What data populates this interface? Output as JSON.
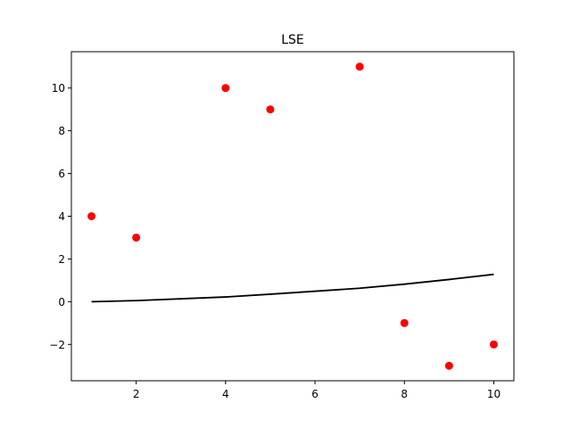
{
  "chart_data": {
    "type": "scatter",
    "title": "LSE",
    "xlabel": "",
    "ylabel": "",
    "xlim": [
      0.55,
      10.45
    ],
    "ylim": [
      -3.7,
      11.7
    ],
    "xticks": [
      2,
      4,
      6,
      8,
      10
    ],
    "yticks": [
      -2,
      0,
      2,
      4,
      6,
      8,
      10
    ],
    "xtick_labels": [
      "2",
      "4",
      "6",
      "8",
      "10"
    ],
    "ytick_labels": [
      "−2",
      "0",
      "2",
      "4",
      "6",
      "8",
      "10"
    ],
    "grid": false,
    "series": [
      {
        "kind": "scatter",
        "color": "#ff0000",
        "x": [
          1,
          2,
          4,
          5,
          7,
          8,
          9,
          10
        ],
        "y": [
          4,
          3,
          10,
          9,
          11,
          -1,
          -3,
          -2
        ]
      },
      {
        "kind": "line",
        "color": "#000000",
        "x": [
          1,
          2,
          4,
          5,
          7,
          8,
          9,
          10
        ],
        "y": [
          0.0,
          0.05,
          0.22,
          0.35,
          0.63,
          0.82,
          1.04,
          1.28
        ]
      }
    ]
  }
}
